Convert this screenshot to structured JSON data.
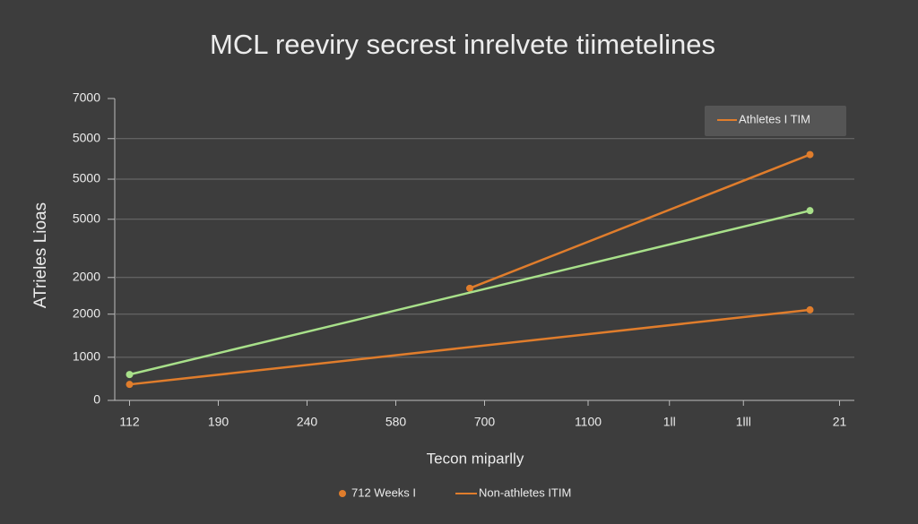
{
  "chart_data": {
    "type": "line",
    "title": "MCL reeviry secrest inrelvete tiimetelines",
    "x_label": "Tecon miparlly",
    "y_label": "ATrieles Lioas",
    "xlim": [
      0,
      100
    ],
    "xticks": [
      {
        "value": 2,
        "label": "112"
      },
      {
        "value": 14,
        "label": "190"
      },
      {
        "value": 26,
        "label": "240"
      },
      {
        "value": 38,
        "label": "580"
      },
      {
        "value": 50,
        "label": "700"
      },
      {
        "value": 64,
        "label": "1100"
      },
      {
        "value": 75,
        "label": "1ll"
      },
      {
        "value": 85,
        "label": "1lll"
      },
      {
        "value": 98,
        "label": "21"
      }
    ],
    "ylim": [
      0,
      7000
    ],
    "yticks": [
      0,
      1000,
      2000,
      {
        "value": 2850,
        "label": "2000"
      },
      {
        "value": 4200,
        "label": "5000"
      },
      {
        "value": 5130,
        "label": "5000"
      },
      {
        "value": 6070,
        "label": "5000"
      },
      7000
    ],
    "grid": true,
    "series": [
      {
        "color": "#e07d2c",
        "x": [
          48,
          94
        ],
        "values": [
          2600,
          5700
        ]
      },
      {
        "color": "#a8e08a",
        "x": [
          2,
          94
        ],
        "values": [
          600,
          4400
        ]
      },
      {
        "color": "#e07d2c",
        "x": [
          2,
          94
        ],
        "values": [
          370,
          2100
        ]
      }
    ],
    "legend_items": [
      {
        "label": "Athletes I TIM",
        "color": "#e07d2c",
        "marker": "line"
      },
      {
        "label": "712 Weeks I",
        "color": "#e07d2c",
        "marker": "dot"
      },
      {
        "label": "Non-athletes ITIM",
        "color": "#e07d2c",
        "marker": "line"
      }
    ]
  }
}
